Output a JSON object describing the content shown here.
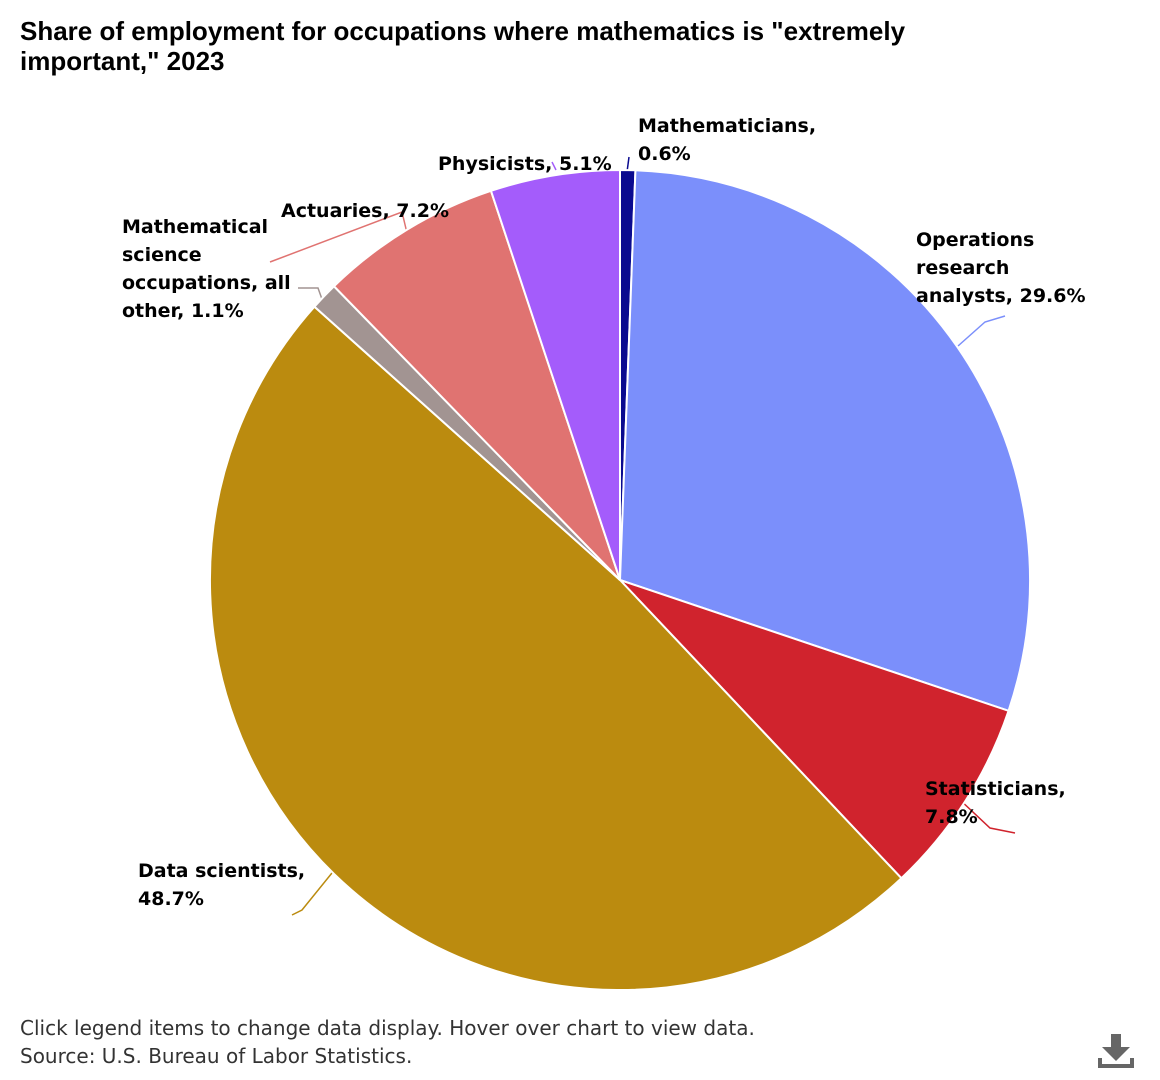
{
  "chart_data": {
    "type": "pie",
    "title": "Share of employment for occupations where mathematics is \"extremely important,\" 2023",
    "slices": [
      {
        "name": "Mathematicians",
        "value": 0.6,
        "label": "0.6%",
        "color": "#0a0a8f"
      },
      {
        "name": "Operations research analysts",
        "value": 29.6,
        "label": "29.6%",
        "color": "#7b8ffb"
      },
      {
        "name": "Statisticians",
        "value": 7.8,
        "label": "7.8%",
        "color": "#d0232d"
      },
      {
        "name": "Data scientists",
        "value": 48.7,
        "label": "48.7%",
        "color": "#bb8b0f"
      },
      {
        "name": "Mathematical science occupations, all other",
        "value": 1.1,
        "label": "1.1%",
        "color": "#a29492"
      },
      {
        "name": "Actuaries",
        "value": 7.2,
        "label": "7.2%",
        "color": "#e07371"
      },
      {
        "name": "Physicists",
        "value": 5.1,
        "label": "5.1%",
        "color": "#a45cfb"
      }
    ],
    "data_labels": [
      [
        "Mathematicians,",
        "0.6%"
      ],
      [
        "Operations",
        "research",
        "analysts, 29.6%"
      ],
      [
        "Statisticians,",
        "7.8%"
      ],
      [
        "Data scientists,",
        "48.7%"
      ],
      [
        "Mathematical",
        "science",
        "occupations, all",
        "other, 1.1%"
      ],
      [
        "Actuaries, 7.2%"
      ],
      [
        "Physicists, 5.1%"
      ]
    ]
  },
  "footer": {
    "note": "Click legend items to change data display. Hover over chart to view data.",
    "source": "Source: U.S. Bureau of Labor Statistics."
  },
  "icons": {
    "download": "download-icon"
  }
}
